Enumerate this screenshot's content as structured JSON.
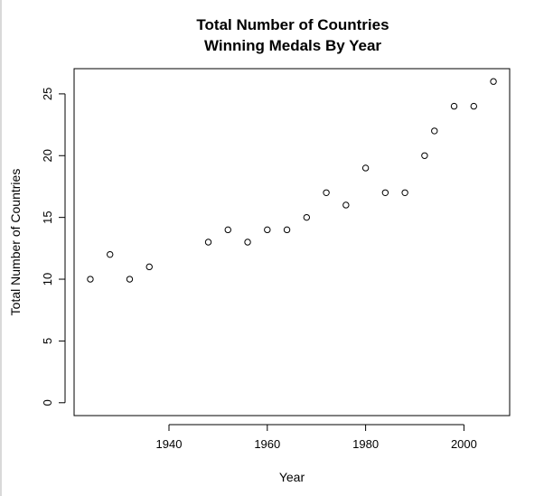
{
  "chart_data": {
    "type": "scatter",
    "title_lines": [
      "Total Number of Countries",
      "Winning Medals By Year"
    ],
    "xlabel": "Year",
    "ylabel": "Total Number of Countries",
    "x_ticks": [
      1940,
      1960,
      1980,
      2000
    ],
    "y_ticks": [
      0,
      5,
      10,
      15,
      20,
      25
    ],
    "xlim": [
      1920.7,
      2009.3
    ],
    "ylim": [
      -1.04,
      27.04
    ],
    "marker": "open-circle",
    "grid": false,
    "legend": "none",
    "points": [
      {
        "x": 1924,
        "y": 10
      },
      {
        "x": 1928,
        "y": 12
      },
      {
        "x": 1932,
        "y": 10
      },
      {
        "x": 1936,
        "y": 11
      },
      {
        "x": 1948,
        "y": 13
      },
      {
        "x": 1952,
        "y": 14
      },
      {
        "x": 1956,
        "y": 13
      },
      {
        "x": 1960,
        "y": 14
      },
      {
        "x": 1964,
        "y": 14
      },
      {
        "x": 1968,
        "y": 15
      },
      {
        "x": 1972,
        "y": 17
      },
      {
        "x": 1976,
        "y": 16
      },
      {
        "x": 1980,
        "y": 19
      },
      {
        "x": 1984,
        "y": 17
      },
      {
        "x": 1988,
        "y": 17
      },
      {
        "x": 1992,
        "y": 20
      },
      {
        "x": 1994,
        "y": 22
      },
      {
        "x": 1998,
        "y": 24
      },
      {
        "x": 2002,
        "y": 24
      },
      {
        "x": 2006,
        "y": 26
      }
    ]
  }
}
